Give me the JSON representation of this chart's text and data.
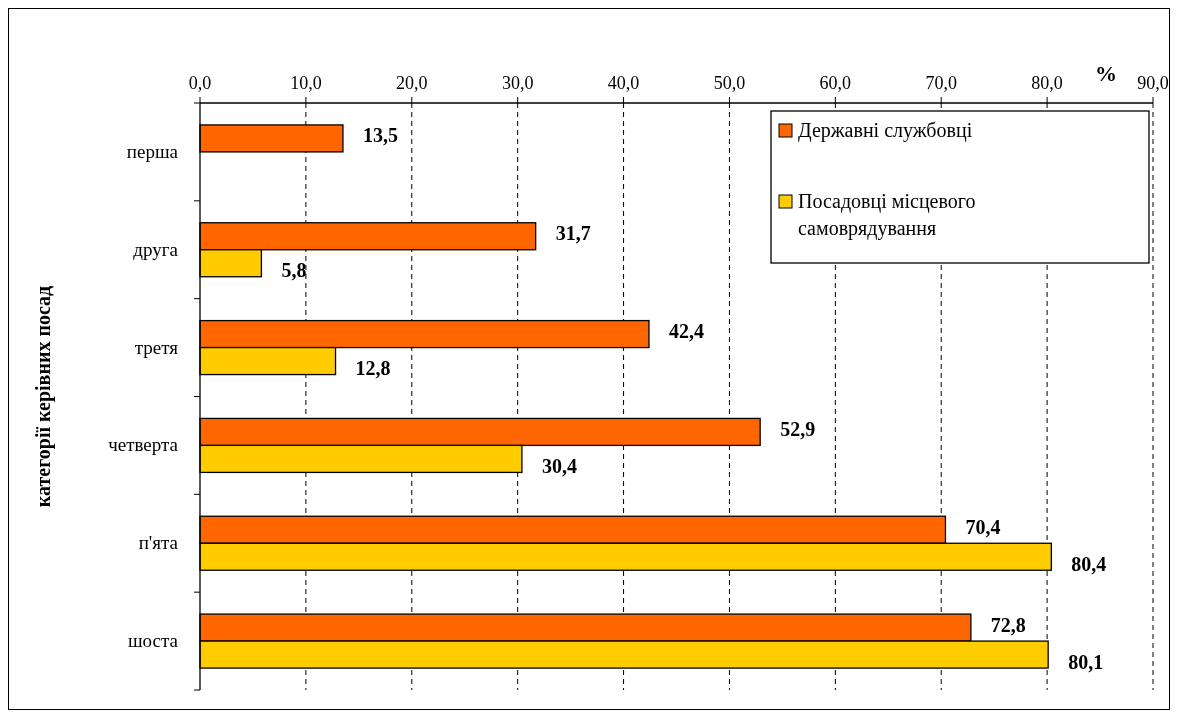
{
  "chart_data": {
    "type": "bar",
    "orientation": "horizontal",
    "ylabel": "категорії керівних посад",
    "xlabel": "%",
    "categories": [
      "перша",
      "друга",
      "третя",
      "четверта",
      "п'ята",
      "шоста"
    ],
    "series": [
      {
        "name": "Державні службовці",
        "color": "#ff6600",
        "values": [
          13.5,
          31.7,
          42.4,
          52.9,
          70.4,
          72.8
        ],
        "value_labels": [
          "13,5",
          "31,7",
          "42,4",
          "52,9",
          "70,4",
          "72,8"
        ]
      },
      {
        "name": "Посадовці місцевого самоврядування",
        "color": "#ffcc00",
        "values": [
          null,
          5.8,
          12.8,
          30.4,
          80.4,
          80.1
        ],
        "value_labels": [
          null,
          "5,8",
          "12,8",
          "30,4",
          "80,4",
          "80,1"
        ]
      }
    ],
    "xlim": [
      0,
      90
    ],
    "xticks": [
      {
        "value": 0,
        "label": "0,0"
      },
      {
        "value": 10,
        "label": "10,0"
      },
      {
        "value": 20,
        "label": "20,0"
      },
      {
        "value": 30,
        "label": "30,0"
      },
      {
        "value": 40,
        "label": "40,0"
      },
      {
        "value": 50,
        "label": "50,0"
      },
      {
        "value": 60,
        "label": "60,0"
      },
      {
        "value": 70,
        "label": "70,0"
      },
      {
        "value": 80,
        "label": "80,0"
      },
      {
        "value": 90,
        "label": "90,0"
      }
    ],
    "grid": "x",
    "legend": "top right"
  }
}
